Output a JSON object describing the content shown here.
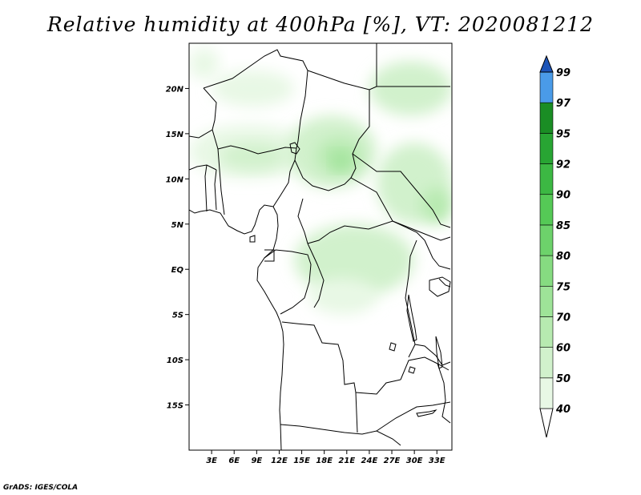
{
  "title": "Relative humidity at 400hPa [%], VT: 2020081212",
  "credit": "GrADS: IGES/COLA",
  "map": {
    "projection": "lat-lon",
    "lon_range": [
      0,
      35
    ],
    "lat_range": [
      -20,
      25
    ],
    "x_ticks": [
      {
        "lon": 3,
        "label": "3E"
      },
      {
        "lon": 6,
        "label": "6E"
      },
      {
        "lon": 9,
        "label": "9E"
      },
      {
        "lon": 12,
        "label": "12E"
      },
      {
        "lon": 15,
        "label": "15E"
      },
      {
        "lon": 18,
        "label": "18E"
      },
      {
        "lon": 21,
        "label": "21E"
      },
      {
        "lon": 24,
        "label": "24E"
      },
      {
        "lon": 27,
        "label": "27E"
      },
      {
        "lon": 30,
        "label": "30E"
      },
      {
        "lon": 33,
        "label": "33E"
      }
    ],
    "y_ticks": [
      {
        "lat": 20,
        "label": "20N"
      },
      {
        "lat": 15,
        "label": "15N"
      },
      {
        "lat": 10,
        "label": "10N"
      },
      {
        "lat": 5,
        "label": "5N"
      },
      {
        "lat": 0,
        "label": "EQ"
      },
      {
        "lat": -5,
        "label": "5S"
      },
      {
        "lat": -10,
        "label": "10S"
      },
      {
        "lat": -15,
        "label": "15S"
      }
    ]
  },
  "chart_data": {
    "type": "heatmap",
    "title": "Relative humidity at 400hPa [%], VT: 2020081212",
    "variable": "Relative humidity",
    "units": "%",
    "colorbar": {
      "levels": [
        40,
        50,
        60,
        70,
        75,
        80,
        85,
        90,
        92,
        95,
        97,
        99
      ],
      "colors": [
        "#e8f8e5",
        "#d1f1cc",
        "#b7eab0",
        "#9ee398",
        "#86db81",
        "#6dd26b",
        "#55c956",
        "#3cb843",
        "#28a533",
        "#1a8d24",
        "#4a9be8",
        "#2b74d6",
        "#1d55b8"
      ]
    },
    "regions": [
      {
        "rh": 45,
        "lon": [
          0,
          4
        ],
        "lat": [
          21,
          24.5
        ]
      },
      {
        "rh": 45,
        "lon": [
          3,
          14
        ],
        "lat": [
          18,
          22
        ]
      },
      {
        "rh": 45,
        "lon": [
          0,
          16
        ],
        "lat": [
          10,
          16
        ]
      },
      {
        "rh": 50,
        "lon": [
          4,
          13
        ],
        "lat": [
          11,
          14
        ]
      },
      {
        "rh": 50,
        "lon": [
          13,
          25
        ],
        "lat": [
          9,
          17
        ]
      },
      {
        "rh": 60,
        "lon": [
          17,
          23
        ],
        "lat": [
          10.5,
          14.5
        ]
      },
      {
        "rh": 70,
        "lon": [
          19,
          21.5
        ],
        "lat": [
          11,
          13
        ]
      },
      {
        "rh": 50,
        "lon": [
          24,
          35
        ],
        "lat": [
          17,
          23
        ]
      },
      {
        "rh": 55,
        "lon": [
          25,
          35
        ],
        "lat": [
          5,
          14
        ]
      },
      {
        "rh": 60,
        "lon": [
          31,
          35
        ],
        "lat": [
          5,
          9
        ]
      },
      {
        "rh": 50,
        "lon": [
          14,
          30
        ],
        "lat": [
          -3,
          5
        ]
      },
      {
        "rh": 45,
        "lon": [
          16,
          25
        ],
        "lat": [
          -5,
          -1
        ]
      }
    ]
  }
}
